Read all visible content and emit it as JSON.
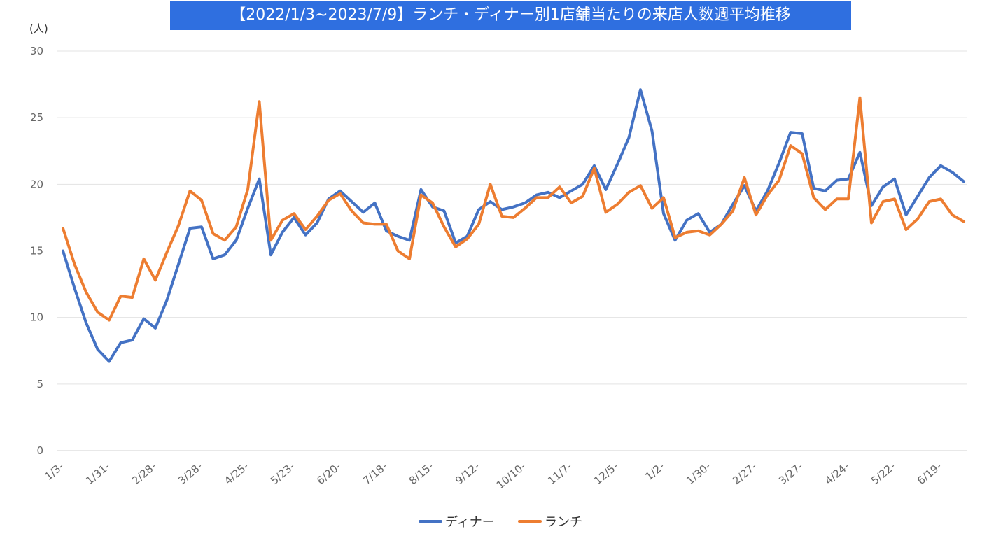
{
  "chart_data": {
    "type": "line",
    "title": "【2022/1/3~2023/7/9】ランチ・ディナー別1店舗当たりの来店人数週平均推移",
    "ylabel": "(人)",
    "xlabel": "",
    "ylim": [
      0,
      30
    ],
    "yticks": [
      0,
      5,
      10,
      15,
      20,
      25,
      30
    ],
    "grid": true,
    "legend_position": "bottom",
    "x_tick_labels": [
      "1/3-",
      "1/31-",
      "2/28-",
      "3/28-",
      "4/25-",
      "5/23-",
      "6/20-",
      "7/18-",
      "8/15-",
      "9/12-",
      "10/10-",
      "11/7-",
      "12/5-",
      "1/2-",
      "1/30-",
      "2/27-",
      "3/27-",
      "4/24-",
      "5/22-",
      "6/19-"
    ],
    "x_tick_every": 4,
    "series": [
      {
        "name": "ディナー",
        "color": "#4472c4",
        "values": [
          15.0,
          12.2,
          9.6,
          7.6,
          6.7,
          8.1,
          8.3,
          9.9,
          9.2,
          11.3,
          14.0,
          16.7,
          16.8,
          14.4,
          14.7,
          15.8,
          18.2,
          20.4,
          14.7,
          16.4,
          17.5,
          16.2,
          17.1,
          18.9,
          19.5,
          18.7,
          17.9,
          18.6,
          16.5,
          16.1,
          15.8,
          19.6,
          18.3,
          18.0,
          15.6,
          16.1,
          18.1,
          18.7,
          18.1,
          18.3,
          18.6,
          19.2,
          19.4,
          19.0,
          19.5,
          20.0,
          21.4,
          19.6,
          21.5,
          23.5,
          27.1,
          24.0,
          17.8,
          15.8,
          17.3,
          17.8,
          16.4,
          17.0,
          18.5,
          19.9,
          18.0,
          19.5,
          21.6,
          23.9,
          23.8,
          19.7,
          19.5,
          20.3,
          20.4,
          22.4,
          18.4,
          19.8,
          20.4,
          17.7,
          19.1,
          20.5,
          21.4,
          20.9,
          20.2
        ]
      },
      {
        "name": "ランチ",
        "color": "#ed7d31",
        "values": [
          16.7,
          14.0,
          11.9,
          10.4,
          9.8,
          11.6,
          11.5,
          14.4,
          12.8,
          14.9,
          16.9,
          19.5,
          18.8,
          16.3,
          15.8,
          16.8,
          19.6,
          26.2,
          15.8,
          17.3,
          17.8,
          16.6,
          17.6,
          18.8,
          19.3,
          18.0,
          17.1,
          17.0,
          17.0,
          15.0,
          14.4,
          19.2,
          18.6,
          16.8,
          15.3,
          15.9,
          17.0,
          20.0,
          17.6,
          17.5,
          18.2,
          19.0,
          19.0,
          19.8,
          18.6,
          19.1,
          21.2,
          17.9,
          18.5,
          19.4,
          19.9,
          18.2,
          19.0,
          16.0,
          16.4,
          16.5,
          16.2,
          17.0,
          18.0,
          20.5,
          17.7,
          19.2,
          20.3,
          22.9,
          22.3,
          19.0,
          18.1,
          18.9,
          18.9,
          26.5,
          17.1,
          18.7,
          18.9,
          16.6,
          17.4,
          18.7,
          18.9,
          17.7,
          17.2
        ]
      }
    ]
  }
}
